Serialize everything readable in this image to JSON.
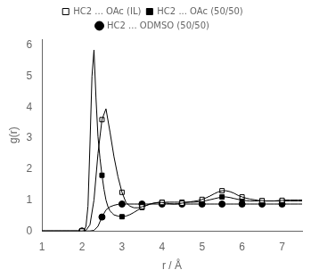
{
  "chart_data": {
    "type": "line",
    "xlabel": "r / Å",
    "ylabel": "g(r)",
    "xlim": [
      1.0,
      7.5
    ],
    "ylim": [
      0.0,
      6.2
    ],
    "xticks": [
      1,
      2,
      3,
      4,
      5,
      6,
      7
    ],
    "yticks": [
      0,
      1,
      2,
      3,
      4,
      5,
      6
    ],
    "grid": false,
    "legend": "top",
    "series": [
      {
        "name": "HC2 ... OAc (IL)",
        "color": "#000000",
        "marker": "square_open",
        "x": [
          1.0,
          1.1,
          1.2,
          1.3,
          1.4,
          1.5,
          1.6,
          1.7,
          1.8,
          1.9,
          2.0,
          2.1,
          2.2,
          2.3,
          2.4,
          2.5,
          2.6,
          2.7,
          2.8,
          2.9,
          3.0,
          3.1,
          3.2,
          3.3,
          3.4,
          3.5,
          3.6,
          3.7,
          3.8,
          3.9,
          4.0,
          4.1,
          4.2,
          4.3,
          4.4,
          4.5,
          4.6,
          4.7,
          4.8,
          4.9,
          5.0,
          5.1,
          5.2,
          5.3,
          5.4,
          5.5,
          5.6,
          5.7,
          5.8,
          5.9,
          6.0,
          6.1,
          6.2,
          6.3,
          6.4,
          6.5,
          6.6,
          6.7,
          6.8,
          6.9,
          7.0,
          7.1,
          7.2,
          7.3,
          7.4,
          7.5
        ],
        "values": [
          0.0,
          0.0,
          0.0,
          0.0,
          0.0,
          0.0,
          0.0,
          0.0,
          0.0,
          0.0,
          0.0,
          0.02,
          0.2,
          1.0,
          2.5,
          3.6,
          3.95,
          3.2,
          2.4,
          1.75,
          1.25,
          0.92,
          0.8,
          0.75,
          0.75,
          0.78,
          0.82,
          0.87,
          0.9,
          0.92,
          0.92,
          0.9,
          0.88,
          0.87,
          0.88,
          0.9,
          0.92,
          0.94,
          0.96,
          0.98,
          1.02,
          1.07,
          1.13,
          1.2,
          1.26,
          1.3,
          1.3,
          1.27,
          1.22,
          1.15,
          1.1,
          1.06,
          1.03,
          1.01,
          0.99,
          0.98,
          0.97,
          0.97,
          0.97,
          0.98,
          0.99,
          1.0,
          1.0,
          1.0,
          1.0,
          1.0
        ],
        "marker_x": [
          2.0,
          2.5,
          3.0,
          3.5,
          4.0,
          4.5,
          5.0,
          5.5,
          6.0,
          6.5,
          7.0
        ],
        "marker_values": [
          0.0,
          3.6,
          1.25,
          0.78,
          0.92,
          0.9,
          1.02,
          1.3,
          1.1,
          0.98,
          0.99
        ]
      },
      {
        "name": "HC2 ... OAc (50/50)",
        "color": "#000000",
        "marker": "square",
        "x": [
          1.0,
          1.1,
          1.2,
          1.3,
          1.4,
          1.5,
          1.6,
          1.7,
          1.8,
          1.9,
          2.0,
          2.05,
          2.1,
          2.15,
          2.2,
          2.25,
          2.3,
          2.35,
          2.4,
          2.45,
          2.5,
          2.55,
          2.6,
          2.65,
          2.7,
          2.75,
          2.8,
          2.9,
          3.0,
          3.1,
          3.2,
          3.3,
          3.4,
          3.5,
          3.6,
          3.7,
          3.8,
          3.9,
          4.0,
          4.1,
          4.2,
          4.3,
          4.4,
          4.5,
          4.6,
          4.7,
          4.8,
          4.9,
          5.0,
          5.1,
          5.2,
          5.3,
          5.4,
          5.5,
          5.6,
          5.7,
          5.8,
          5.9,
          6.0,
          6.1,
          6.2,
          6.3,
          6.4,
          6.5,
          6.6,
          6.7,
          6.8,
          6.9,
          7.0,
          7.1,
          7.2,
          7.3,
          7.4,
          7.5
        ],
        "values": [
          0.0,
          0.0,
          0.0,
          0.0,
          0.0,
          0.0,
          0.0,
          0.0,
          0.0,
          0.0,
          0.0,
          0.02,
          0.15,
          0.8,
          2.8,
          5.0,
          5.85,
          4.3,
          3.05,
          2.35,
          1.8,
          1.35,
          1.0,
          0.78,
          0.65,
          0.58,
          0.52,
          0.48,
          0.46,
          0.48,
          0.53,
          0.6,
          0.68,
          0.76,
          0.82,
          0.87,
          0.9,
          0.92,
          0.93,
          0.93,
          0.93,
          0.93,
          0.93,
          0.93,
          0.93,
          0.93,
          0.93,
          0.94,
          0.96,
          0.98,
          1.01,
          1.04,
          1.07,
          1.1,
          1.1,
          1.08,
          1.05,
          1.02,
          1.0,
          0.98,
          0.97,
          0.97,
          0.97,
          0.97,
          0.97,
          0.97,
          0.97,
          0.97,
          0.97,
          0.97,
          0.97,
          0.97,
          0.97,
          0.97
        ],
        "marker_x": [
          2.0,
          2.5,
          3.0,
          3.5,
          4.0,
          4.5,
          5.0,
          5.5,
          6.0,
          6.5,
          7.0
        ],
        "marker_values": [
          0.0,
          1.8,
          0.46,
          0.76,
          0.93,
          0.93,
          0.96,
          1.1,
          1.0,
          0.97,
          0.97
        ]
      },
      {
        "name": "HC2 ... ODMSO (50/50)",
        "color": "#000000",
        "marker": "circle",
        "x": [
          1.0,
          1.1,
          1.2,
          1.3,
          1.4,
          1.5,
          1.6,
          1.7,
          1.8,
          1.9,
          2.0,
          2.1,
          2.2,
          2.3,
          2.4,
          2.5,
          2.6,
          2.7,
          2.8,
          2.9,
          3.0,
          3.1,
          3.2,
          3.3,
          3.4,
          3.5,
          3.6,
          3.7,
          3.8,
          3.9,
          4.0,
          4.1,
          4.2,
          4.3,
          4.4,
          4.5,
          4.6,
          4.7,
          4.8,
          4.9,
          5.0,
          5.1,
          5.2,
          5.3,
          5.4,
          5.5,
          5.6,
          5.7,
          5.8,
          5.9,
          6.0,
          6.1,
          6.2,
          6.3,
          6.4,
          6.5,
          6.6,
          6.7,
          6.8,
          6.9,
          7.0,
          7.1,
          7.2,
          7.3,
          7.4,
          7.5
        ],
        "values": [
          0.0,
          0.0,
          0.0,
          0.0,
          0.0,
          0.0,
          0.0,
          0.0,
          0.0,
          0.0,
          0.0,
          0.0,
          0.0,
          0.02,
          0.15,
          0.45,
          0.68,
          0.78,
          0.83,
          0.86,
          0.87,
          0.87,
          0.87,
          0.87,
          0.87,
          0.87,
          0.87,
          0.87,
          0.87,
          0.87,
          0.87,
          0.87,
          0.87,
          0.87,
          0.87,
          0.87,
          0.87,
          0.87,
          0.87,
          0.87,
          0.87,
          0.87,
          0.87,
          0.87,
          0.87,
          0.87,
          0.87,
          0.87,
          0.87,
          0.87,
          0.87,
          0.87,
          0.87,
          0.87,
          0.87,
          0.87,
          0.87,
          0.87,
          0.87,
          0.87,
          0.87,
          0.87,
          0.87,
          0.87,
          0.87,
          0.87
        ],
        "marker_x": [
          2.0,
          2.5,
          3.0,
          3.5,
          4.0,
          4.5,
          5.0,
          5.5,
          6.0,
          6.5,
          7.0
        ],
        "marker_values": [
          0.0,
          0.45,
          0.87,
          0.87,
          0.87,
          0.87,
          0.87,
          0.87,
          0.87,
          0.87,
          0.87
        ]
      }
    ]
  }
}
